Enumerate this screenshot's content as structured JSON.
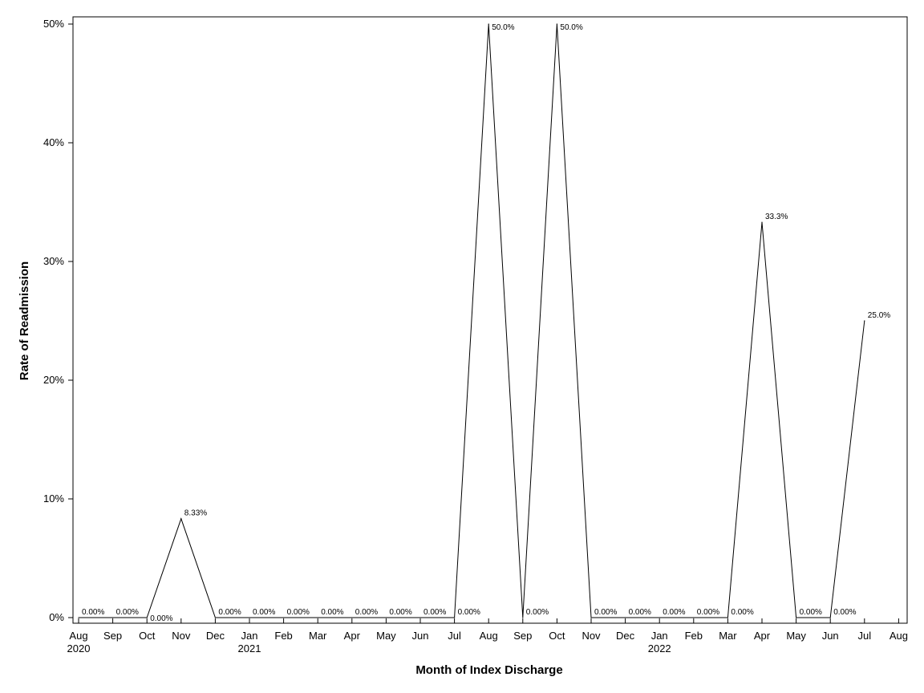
{
  "chart_data": {
    "type": "line",
    "title": "",
    "xlabel": "Month of Index Discharge",
    "ylabel": "Rate of Readmission",
    "grid": false,
    "legend": "none",
    "ylim": [
      0,
      50
    ],
    "yticks": [
      "0%",
      "10%",
      "20%",
      "30%",
      "40%",
      "50%"
    ],
    "xticks": [
      {
        "month": "Aug",
        "year": "2020"
      },
      {
        "month": "Sep",
        "year": ""
      },
      {
        "month": "Oct",
        "year": ""
      },
      {
        "month": "Nov",
        "year": ""
      },
      {
        "month": "Dec",
        "year": ""
      },
      {
        "month": "Jan",
        "year": "2021"
      },
      {
        "month": "Feb",
        "year": ""
      },
      {
        "month": "Mar",
        "year": ""
      },
      {
        "month": "Apr",
        "year": ""
      },
      {
        "month": "May",
        "year": ""
      },
      {
        "month": "Jun",
        "year": ""
      },
      {
        "month": "Jul",
        "year": ""
      },
      {
        "month": "Aug",
        "year": ""
      },
      {
        "month": "Sep",
        "year": ""
      },
      {
        "month": "Oct",
        "year": ""
      },
      {
        "month": "Nov",
        "year": ""
      },
      {
        "month": "Dec",
        "year": ""
      },
      {
        "month": "Jan",
        "year": "2022"
      },
      {
        "month": "Feb",
        "year": ""
      },
      {
        "month": "Mar",
        "year": ""
      },
      {
        "month": "Apr",
        "year": ""
      },
      {
        "month": "May",
        "year": ""
      },
      {
        "month": "Jun",
        "year": ""
      },
      {
        "month": "Jul",
        "year": ""
      },
      {
        "month": "Aug",
        "year": ""
      }
    ],
    "series": [
      {
        "color": "#000000",
        "x": [
          "2020-08",
          "2020-09",
          "2020-10",
          "2020-11",
          "2020-12",
          "2021-01",
          "2021-02",
          "2021-03",
          "2021-04",
          "2021-05",
          "2021-06",
          "2021-07",
          "2021-08",
          "2021-09",
          "2021-10",
          "2021-11",
          "2021-12",
          "2022-01",
          "2022-02",
          "2022-03",
          "2022-04",
          "2022-05",
          "2022-06",
          "2022-07"
        ],
        "values": [
          0,
          0,
          0,
          8.33,
          0,
          0,
          0,
          0,
          0,
          0,
          0,
          0,
          50,
          0,
          50,
          0,
          0,
          0,
          0,
          0,
          33.3,
          0,
          0,
          25
        ],
        "labels": [
          "0.00%",
          "0.00%",
          "0.00%",
          "8.33%",
          "0.00%",
          "0.00%",
          "0.00%",
          "0.00%",
          "0.00%",
          "0.00%",
          "0.00%",
          "0.00%",
          "50.0%",
          "0.00%",
          "50.0%",
          "0.00%",
          "0.00%",
          "0.00%",
          "0.00%",
          "0.00%",
          "33.3%",
          "0.00%",
          "0.00%",
          "25.0%"
        ]
      }
    ]
  }
}
